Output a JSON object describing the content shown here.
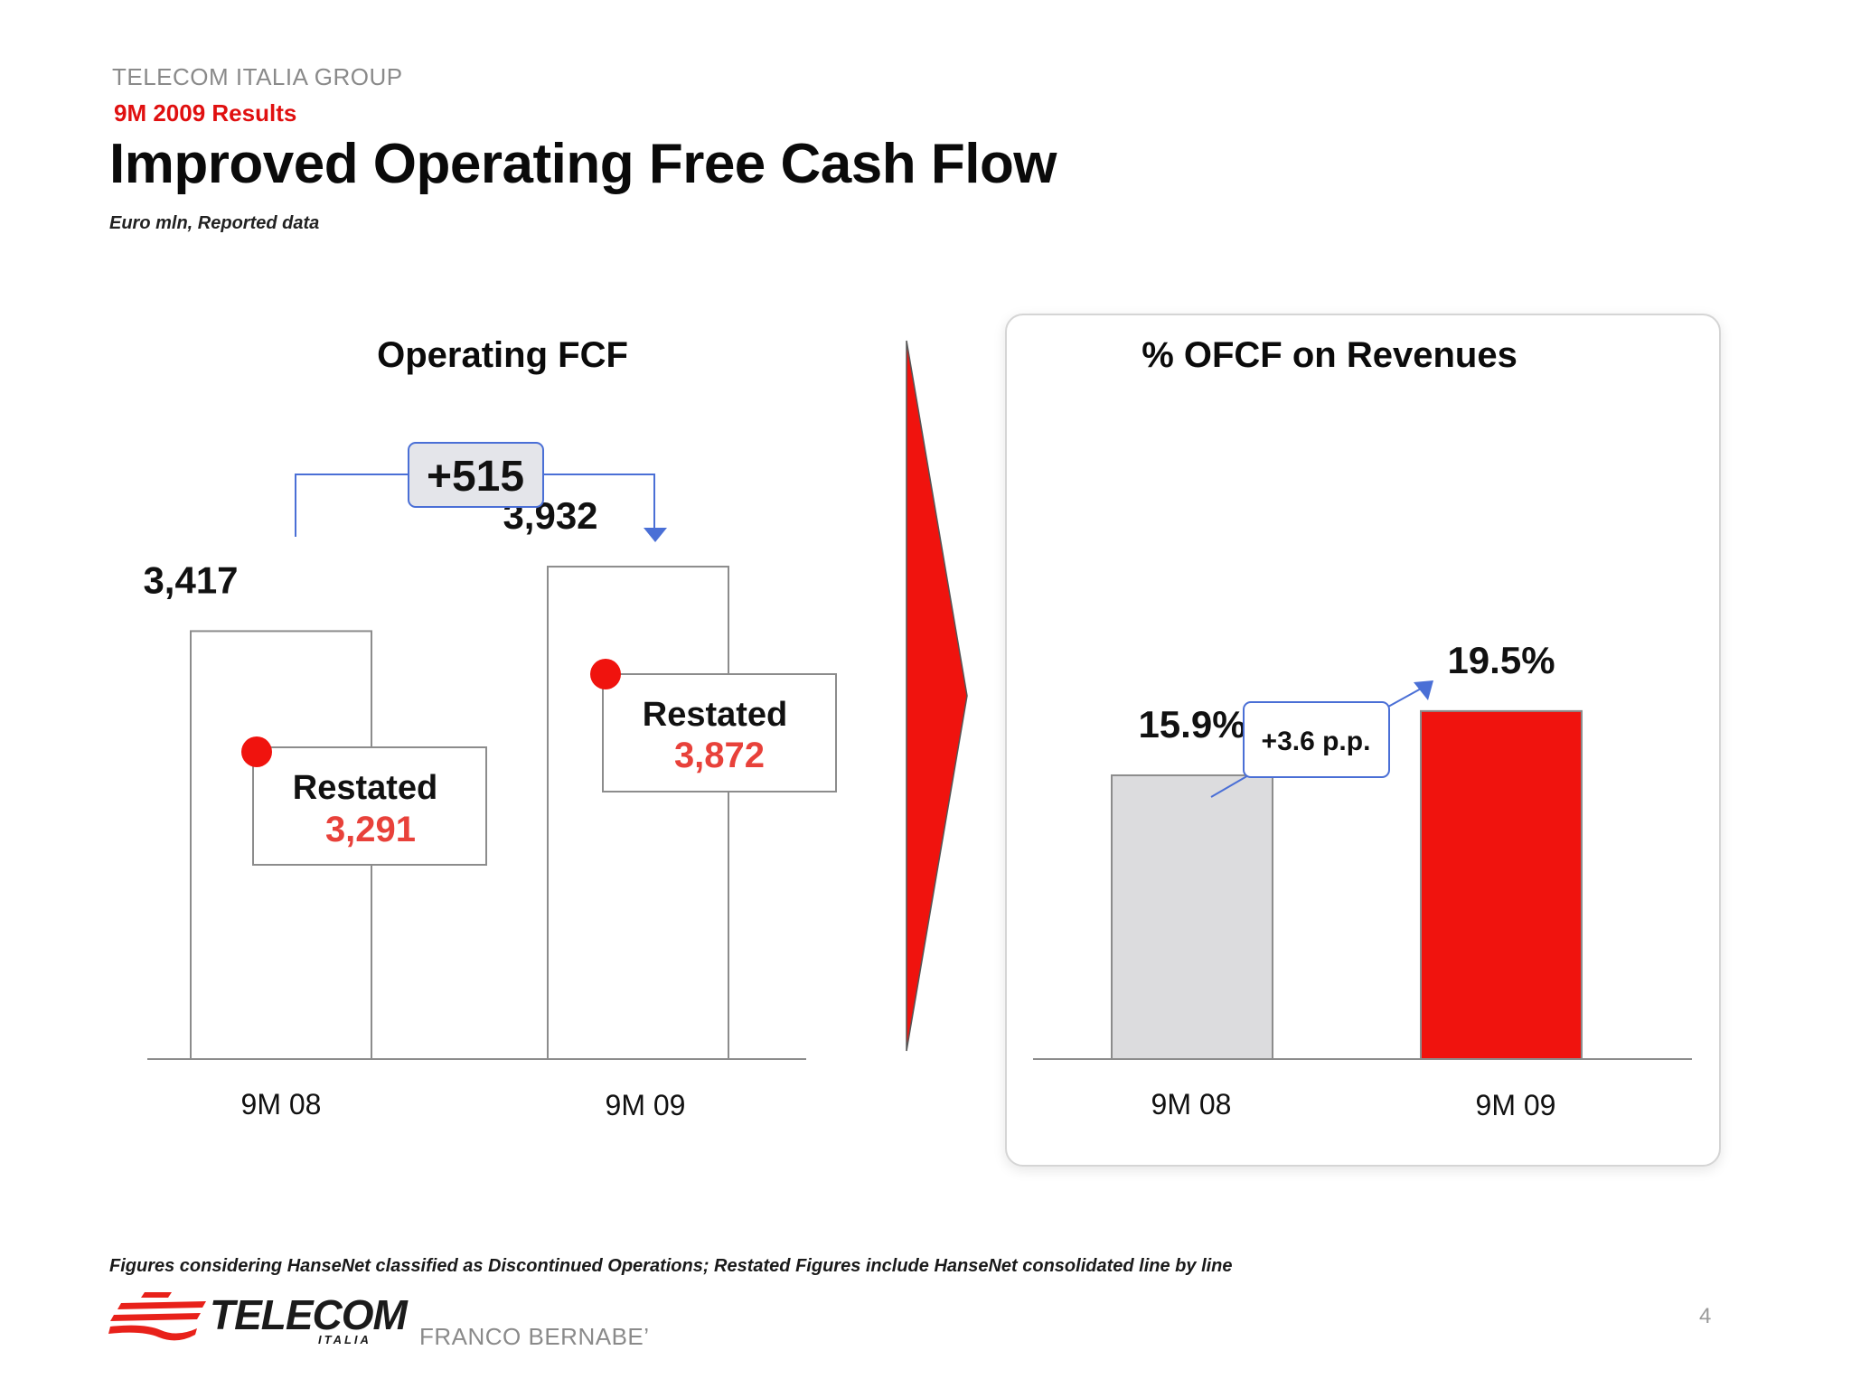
{
  "header": {
    "group": "TELECOM ITALIA GROUP",
    "results": "9M 2009 Results",
    "title": "Improved Operating Free Cash Flow",
    "units": "Euro mln, Reported data"
  },
  "colors": {
    "accent_red": "#f0130e",
    "restated_red": "#e8413a",
    "bar_grey": "#dcdcde",
    "delta_blue": "#4a6fd6",
    "delta_box_fill": "#e4e5ea"
  },
  "chart_data": [
    {
      "type": "bar",
      "title": "Operating FCF",
      "categories": [
        "9M 08",
        "9M 09"
      ],
      "value_labels": [
        "3,417",
        "3,932"
      ],
      "values": [
        3417,
        3932
      ],
      "restated": {
        "label": "Restated",
        "value_labels": [
          "3,291",
          "3,872"
        ],
        "values": [
          3291,
          3872
        ]
      },
      "delta_label": "+515",
      "ylim": [
        0,
        5700
      ],
      "grid": false
    },
    {
      "type": "bar",
      "title": "% OFCF on Revenues",
      "categories": [
        "9M 08",
        "9M 09"
      ],
      "value_labels": [
        "15.9%",
        "19.5%"
      ],
      "values": [
        15.9,
        19.5
      ],
      "delta_label": "+3.6 p.p.",
      "ylim": [
        0,
        40
      ],
      "grid": false
    }
  ],
  "footer": {
    "footnote": "Figures considering HanseNet classified as Discontinued Operations; Restated Figures include HanseNet consolidated line by line",
    "presenter": "FRANCO BERNABE’",
    "page_number": "4",
    "logo": {
      "name": "TELECOM",
      "sub": "ITALIA"
    }
  }
}
